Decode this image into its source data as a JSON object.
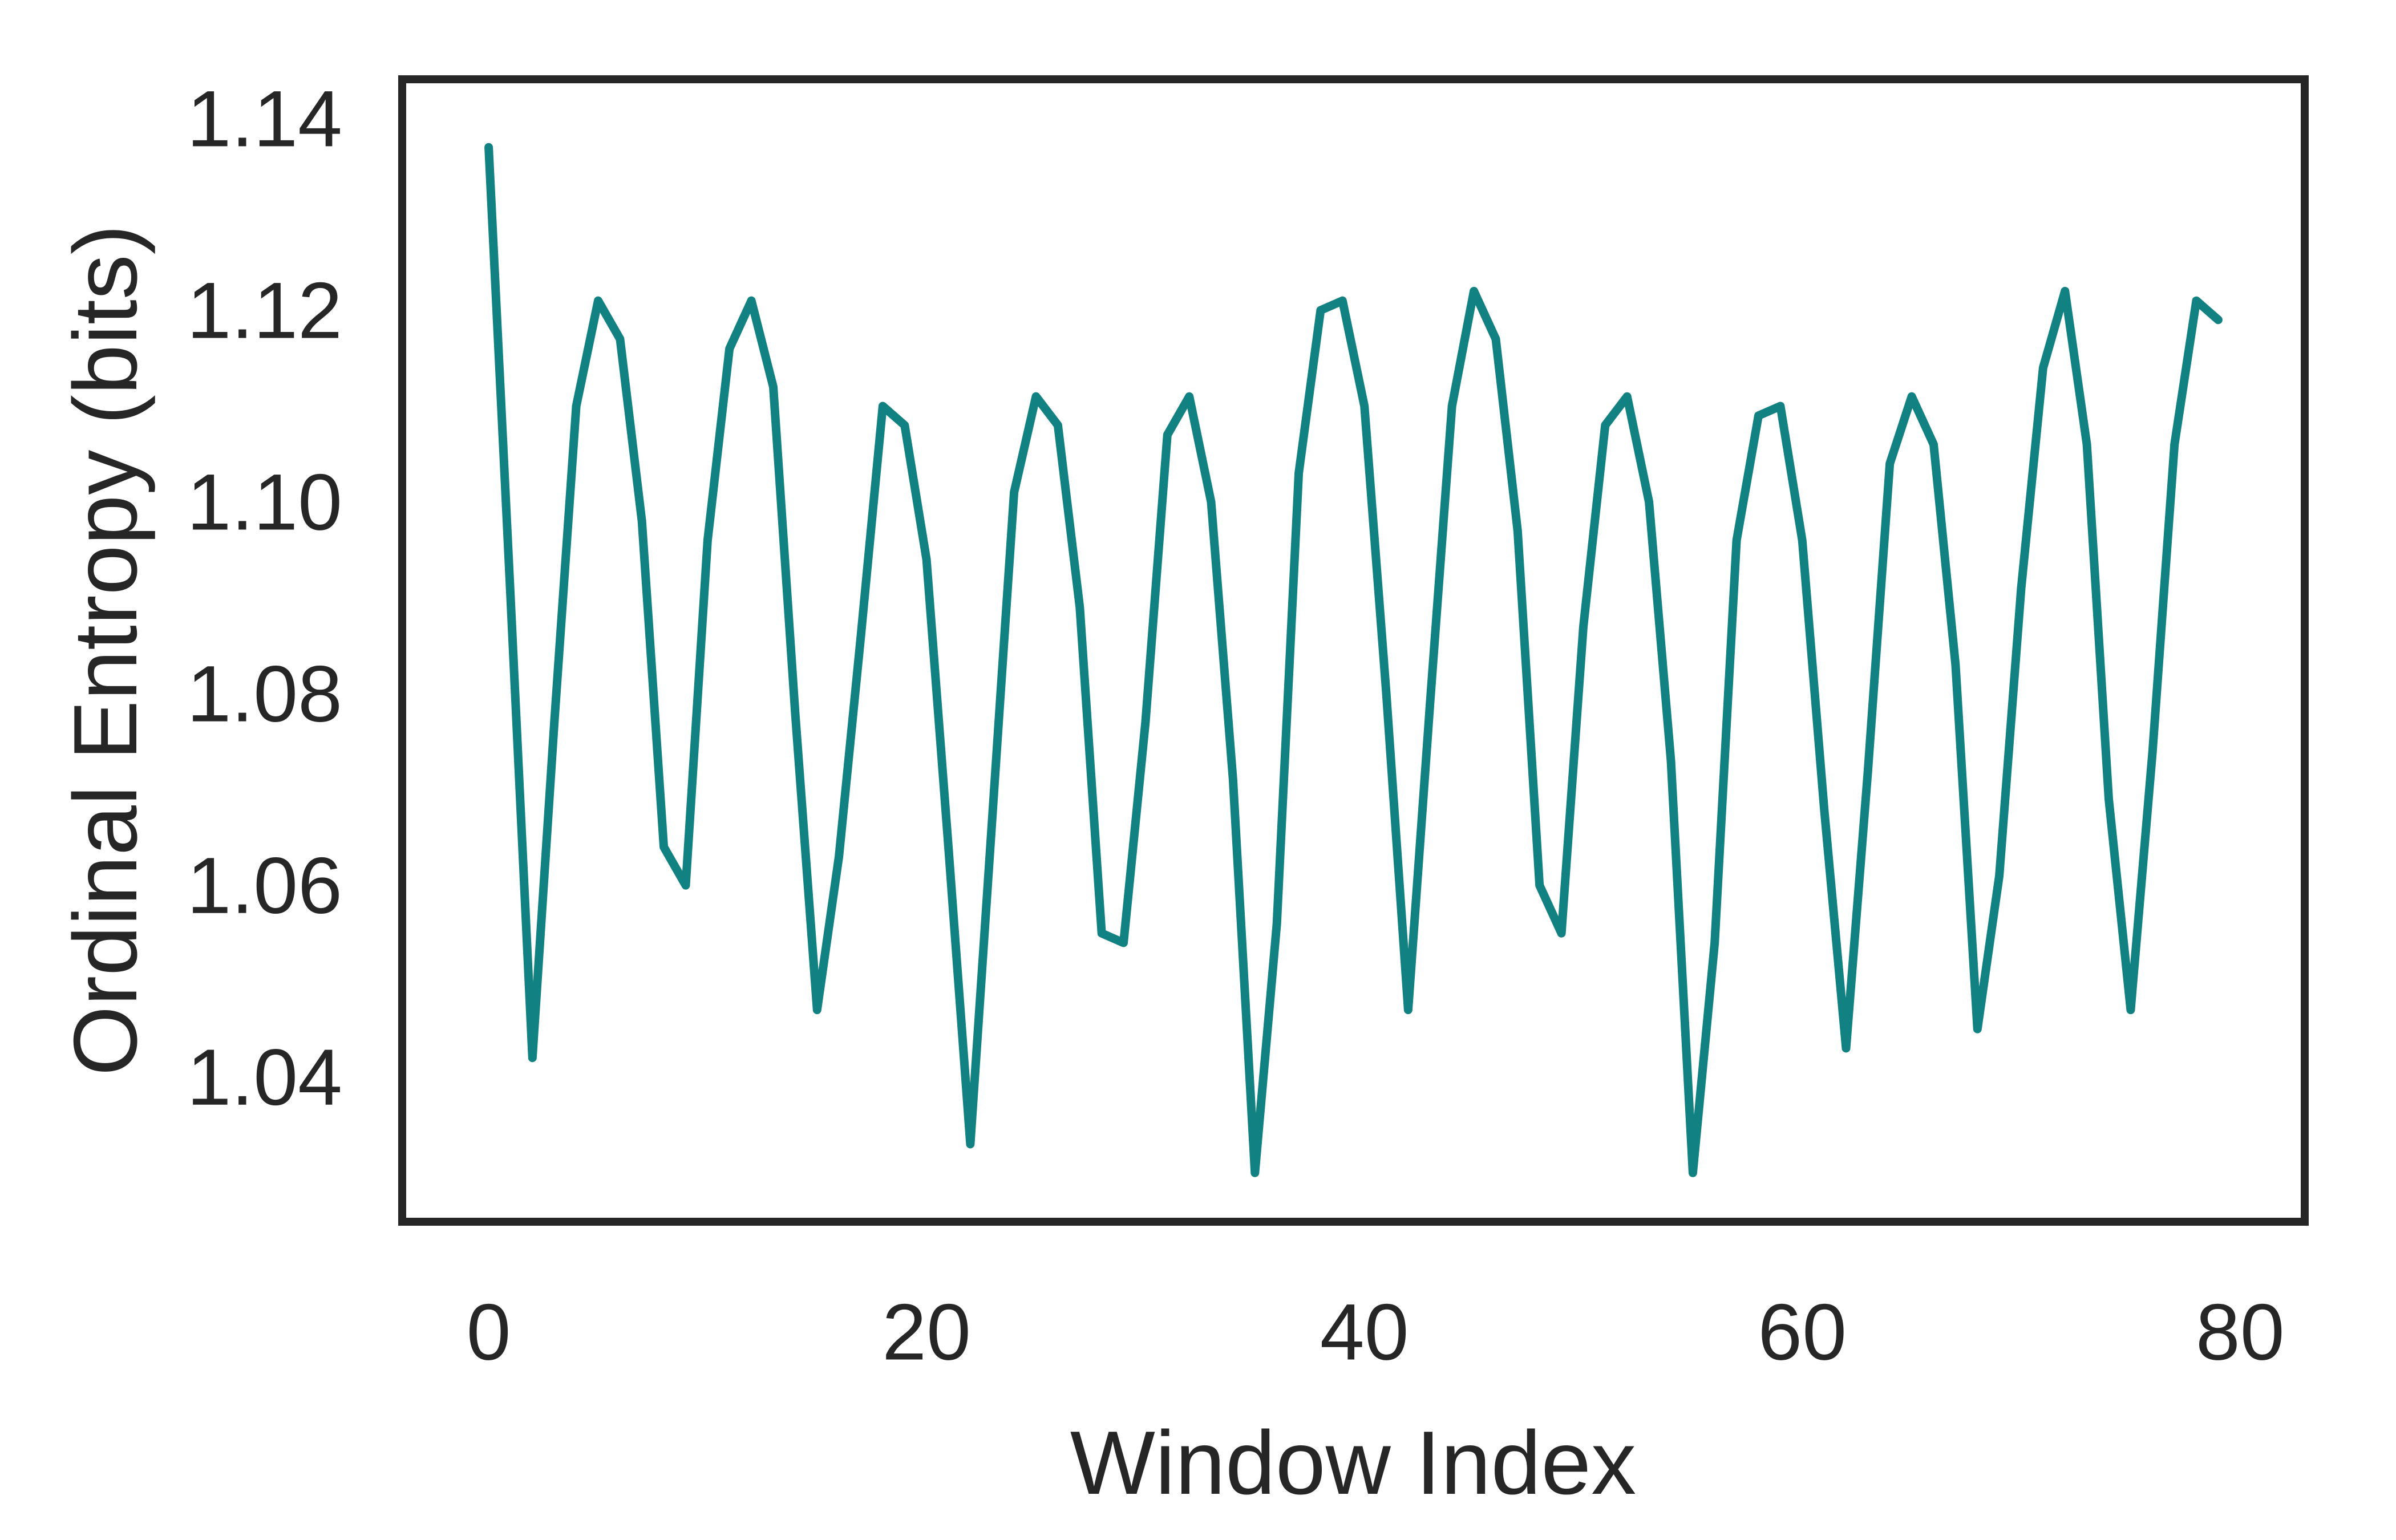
{
  "figure": {
    "background": "#ffffff",
    "axis_color": "#262626",
    "text_color": "#262626"
  },
  "chart_data": {
    "type": "line",
    "title": "",
    "xlabel": "Window Index",
    "ylabel": "Ordinal Entropy (bits)",
    "legend": "none",
    "grid": false,
    "line_color": "#118182",
    "line_width": 15,
    "x_ticks": [
      0,
      20,
      40,
      60,
      80
    ],
    "y_ticks": [
      1.04,
      1.06,
      1.08,
      1.1,
      1.12,
      1.14
    ],
    "y_tick_labels": [
      "1.04",
      "1.06",
      "1.08",
      "1.10",
      "1.12",
      "1.14"
    ],
    "xlim": [
      -3.95,
      82.95
    ],
    "ylim": [
      1.0249,
      1.1441
    ],
    "x": [
      0,
      1,
      2,
      3,
      4,
      5,
      6,
      7,
      8,
      9,
      10,
      11,
      12,
      13,
      14,
      15,
      16,
      17,
      18,
      19,
      20,
      21,
      22,
      23,
      24,
      25,
      26,
      27,
      28,
      29,
      30,
      31,
      32,
      33,
      34,
      35,
      36,
      37,
      38,
      39,
      40,
      41,
      42,
      43,
      44,
      45,
      46,
      47,
      48,
      49,
      50,
      51,
      52,
      53,
      54,
      55,
      56,
      57,
      58,
      59,
      60,
      61,
      62,
      63,
      64,
      65,
      66,
      67,
      68,
      69,
      70,
      71,
      72,
      73,
      74,
      75,
      76,
      77,
      78,
      79
    ],
    "values": [
      1.137,
      1.09,
      1.042,
      1.077,
      1.11,
      1.121,
      1.117,
      1.098,
      1.064,
      1.06,
      1.096,
      1.116,
      1.121,
      1.112,
      1.078,
      1.047,
      1.063,
      1.086,
      1.11,
      1.108,
      1.094,
      1.064,
      1.033,
      1.067,
      1.101,
      1.111,
      1.108,
      1.089,
      1.055,
      1.054,
      1.077,
      1.107,
      1.111,
      1.1,
      1.071,
      1.03,
      1.056,
      1.103,
      1.12,
      1.121,
      1.11,
      1.08,
      1.047,
      1.079,
      1.11,
      1.122,
      1.117,
      1.097,
      1.06,
      1.055,
      1.087,
      1.108,
      1.111,
      1.1,
      1.073,
      1.03,
      1.054,
      1.096,
      1.109,
      1.11,
      1.096,
      1.068,
      1.043,
      1.072,
      1.104,
      1.111,
      1.106,
      1.083,
      1.045,
      1.061,
      1.091,
      1.114,
      1.122,
      1.106,
      1.069,
      1.047,
      1.074,
      1.106,
      1.121,
      1.119
    ]
  }
}
